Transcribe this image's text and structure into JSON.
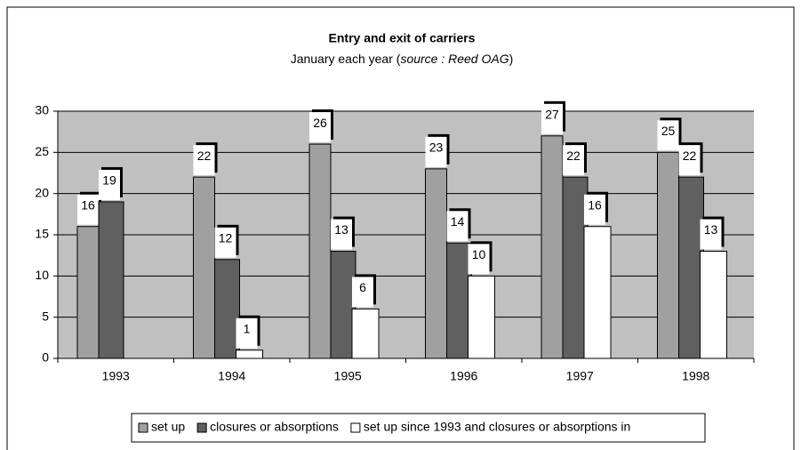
{
  "chart_data": {
    "type": "bar",
    "title": "Entry and exit of carriers",
    "subtitle": [
      "January each year (",
      "source : Reed OAG",
      ")"
    ],
    "categories": [
      "1993",
      "1994",
      "1995",
      "1996",
      "1997",
      "1998"
    ],
    "series": [
      {
        "name": "set up",
        "color": "#a0a0a0",
        "values": [
          16,
          22,
          26,
          23,
          27,
          25
        ]
      },
      {
        "name": "closures or absorptions",
        "color": "#606060",
        "values": [
          19,
          12,
          13,
          14,
          22,
          22
        ]
      },
      {
        "name": "set up since 1993  and closures or absorptions in",
        "color": "#ffffff",
        "values": [
          null,
          1,
          6,
          10,
          16,
          13
        ]
      }
    ],
    "ylim": [
      0,
      30
    ],
    "yticks": [
      0,
      5,
      10,
      15,
      20,
      25,
      30
    ],
    "grid": true,
    "legend": "bottom",
    "plot_background": "#c0c0c0"
  }
}
